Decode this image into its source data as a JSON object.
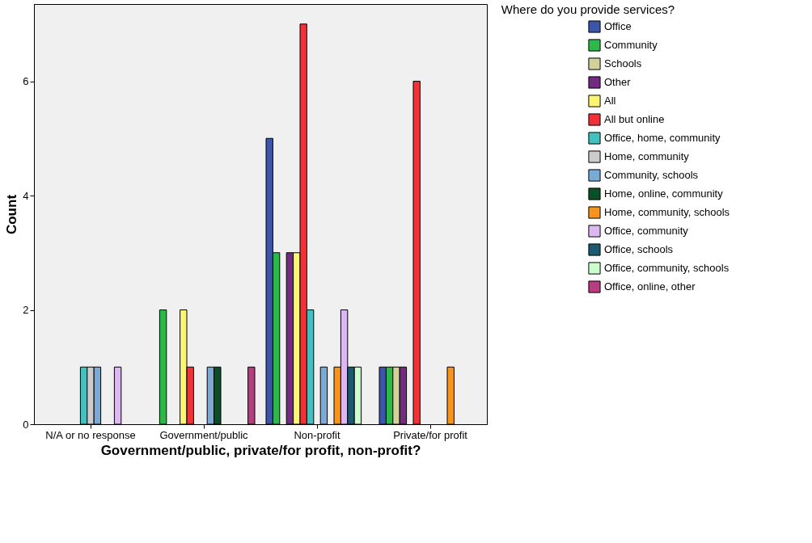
{
  "chart_data": {
    "type": "bar",
    "xlabel": "Government/public, private/for profit, non-profit?",
    "ylabel": "Count",
    "legend_title": "Where do you provide services?",
    "legend": "right",
    "grid": false,
    "categories": [
      "N/A or no response",
      "Government/public",
      "Non-profit",
      "Private/for profit"
    ],
    "ylim": [
      0,
      7.35
    ],
    "yticks": [
      0,
      2,
      4,
      6
    ],
    "series": [
      {
        "name": "Office",
        "color": "#3d55a8",
        "values": [
          null,
          null,
          5,
          1
        ]
      },
      {
        "name": "Community",
        "color": "#2db84a",
        "values": [
          null,
          2,
          3,
          1
        ]
      },
      {
        "name": "Schools",
        "color": "#d4d09a",
        "values": [
          null,
          null,
          null,
          1
        ]
      },
      {
        "name": "Other",
        "color": "#742a80",
        "values": [
          null,
          null,
          3,
          1
        ]
      },
      {
        "name": "All",
        "color": "#fcf572",
        "values": [
          null,
          2,
          3,
          null
        ]
      },
      {
        "name": "All but online",
        "color": "#f03238",
        "values": [
          null,
          1,
          7,
          6
        ]
      },
      {
        "name": "Office, home, community",
        "color": "#44c0c0",
        "values": [
          1,
          null,
          2,
          null
        ]
      },
      {
        "name": "Home, community",
        "color": "#cccccc",
        "values": [
          1,
          null,
          null,
          null
        ]
      },
      {
        "name": "Community, schools",
        "color": "#7aaad8",
        "values": [
          1,
          1,
          1,
          null
        ]
      },
      {
        "name": "Home, online, community",
        "color": "#0b4f28",
        "values": [
          null,
          1,
          null,
          null
        ]
      },
      {
        "name": "Home, community, schools",
        "color": "#f7941d",
        "values": [
          null,
          null,
          1,
          1
        ]
      },
      {
        "name": "Office, community",
        "color": "#dcb8f0",
        "values": [
          1,
          null,
          2,
          null
        ]
      },
      {
        "name": "Office, schools",
        "color": "#1c5a70",
        "values": [
          null,
          null,
          1,
          null
        ]
      },
      {
        "name": "Office, community, schools",
        "color": "#ccffcc",
        "values": [
          null,
          null,
          1,
          null
        ]
      },
      {
        "name": "Office, online, other",
        "color": "#b83c80",
        "values": [
          null,
          1,
          null,
          null
        ]
      }
    ]
  }
}
